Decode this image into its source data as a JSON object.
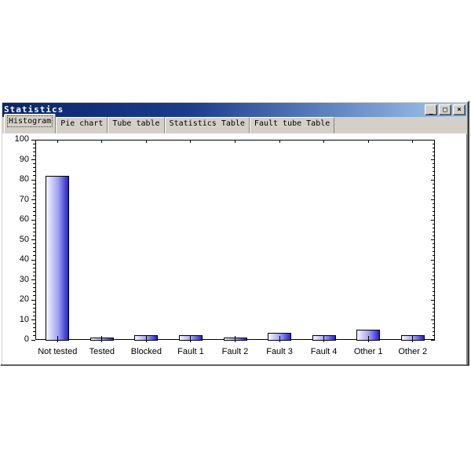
{
  "window": {
    "title": "Statistics",
    "controls": {
      "minimize": "_",
      "maximize": "□",
      "close": "×"
    }
  },
  "tabs": [
    {
      "label": "Histogram",
      "active": true
    },
    {
      "label": "Pie chart",
      "active": false
    },
    {
      "label": "Tube table",
      "active": false
    },
    {
      "label": "Statistics Table",
      "active": false
    },
    {
      "label": "Fault tube Table",
      "active": false
    }
  ],
  "chart_data": {
    "type": "bar",
    "categories": [
      "Not tested",
      "Tested",
      "Blocked",
      "Fault 1",
      "Fault 2",
      "Fault 3",
      "Fault 4",
      "Other 1",
      "Other 2"
    ],
    "values": [
      82,
      1,
      2.5,
      2.5,
      1,
      3.5,
      2.5,
      5,
      2.5
    ],
    "title": "",
    "xlabel": "",
    "ylabel": "",
    "ylim": [
      0,
      100
    ],
    "ytick_step": 10,
    "yminor_step": 2,
    "grid": false,
    "legend": "none",
    "box": true,
    "bar_color": "#2121ce",
    "bar_gradient_start": "#f7f7ff",
    "axis_color": "#000000"
  }
}
